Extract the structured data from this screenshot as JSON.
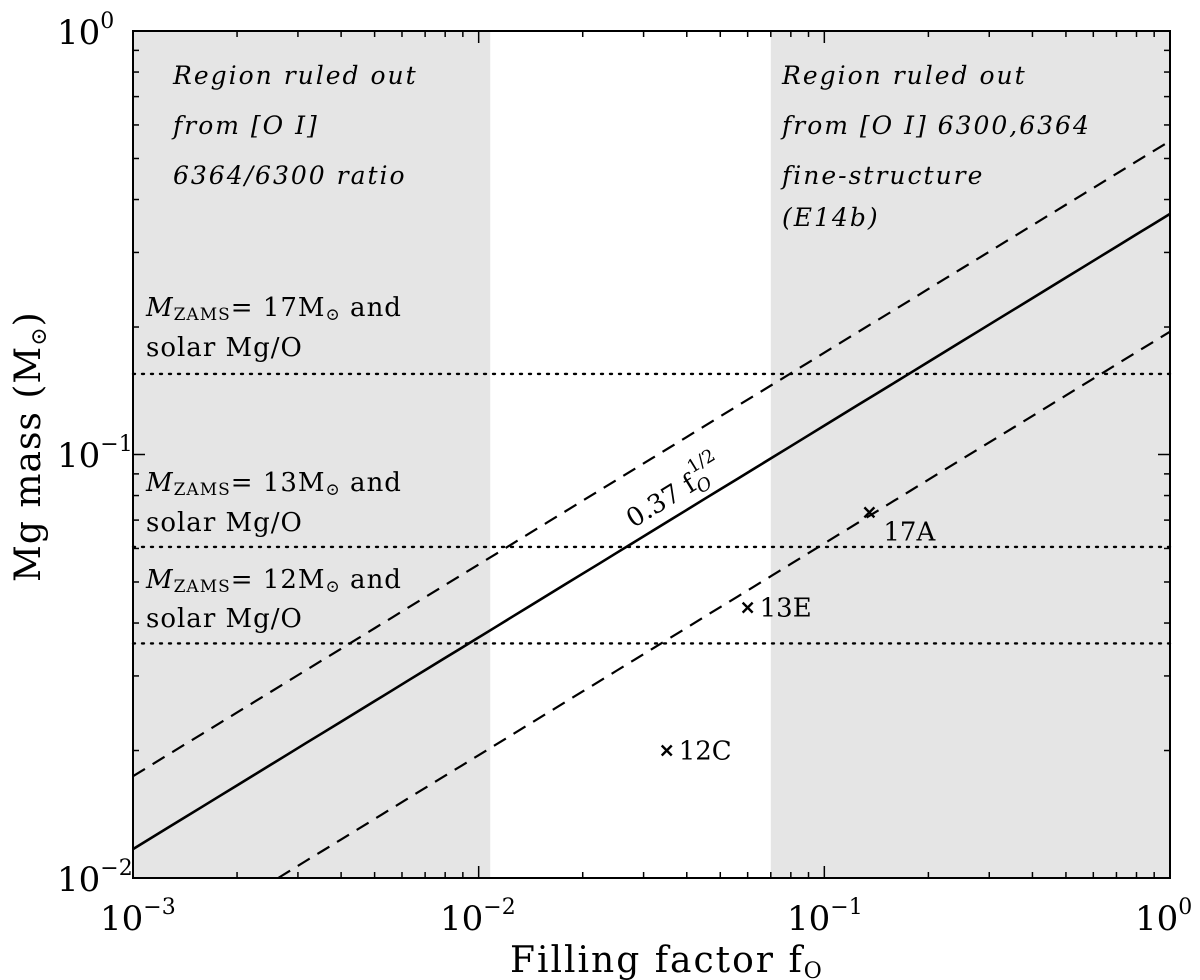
{
  "chart_data": {
    "type": "line",
    "xscale": "log",
    "yscale": "log",
    "xlim": [
      0.001,
      1
    ],
    "ylim": [
      0.01,
      1
    ],
    "grid": false,
    "xlabel": "Filling factor f",
    "xlabel_sub": "O",
    "ylabel": "Mg mass (M",
    "ylabel_sub": "⊙",
    "ylabel_end": ")",
    "x_ticks": [
      {
        "value": 0.001,
        "base": "10",
        "exp": "−3"
      },
      {
        "value": 0.01,
        "base": "10",
        "exp": "−2"
      },
      {
        "value": 0.1,
        "base": "10",
        "exp": "−1"
      },
      {
        "value": 1,
        "base": "10",
        "exp": "0"
      }
    ],
    "y_ticks": [
      {
        "value": 0.01,
        "base": "10",
        "exp": "−2"
      },
      {
        "value": 0.1,
        "base": "10",
        "exp": "−1"
      },
      {
        "value": 1,
        "base": "10",
        "exp": "0"
      }
    ],
    "shaded_regions": [
      {
        "x_range": [
          0.001,
          0.0108
        ],
        "color": "#e5e5e5",
        "lines": [
          "Region ruled out",
          "from [O I]",
          "6364/6300 ratio"
        ]
      },
      {
        "x_range": [
          0.07,
          1
        ],
        "color": "#e5e5e5",
        "lines": [
          "Region ruled out",
          "from [O I] 6300,6364",
          "fine-structure",
          "(E14b)"
        ]
      }
    ],
    "series": [
      {
        "style": "solid",
        "coefficient": 0.37,
        "exponent": 0.5,
        "x_range": [
          0.001,
          1
        ]
      },
      {
        "style": "dashed",
        "coefficient": 0.55,
        "exponent": 0.5,
        "x_range": [
          0.001,
          1
        ]
      },
      {
        "style": "dashed",
        "coefficient": 0.195,
        "exponent": 0.5,
        "x_range": [
          0.001,
          1
        ]
      }
    ],
    "line_label": {
      "text": "0.37 f",
      "sub": "O",
      "sup": "1/2",
      "x": 0.028,
      "y": 0.0655
    },
    "horizontal_lines": [
      {
        "y": 0.155,
        "style": "dotted",
        "label_parts": [
          "M",
          "ZAMS",
          "= 17M",
          "⊙",
          " and"
        ],
        "label_line2": "solar Mg/O"
      },
      {
        "y": 0.0605,
        "style": "dotted",
        "label_parts": [
          "M",
          "ZAMS",
          "= 13M",
          "⊙",
          " and"
        ],
        "label_line2": "solar Mg/O"
      },
      {
        "y": 0.0358,
        "style": "dotted",
        "label_parts": [
          "M",
          "ZAMS",
          "= 12M",
          "⊙",
          " and"
        ],
        "label_line2": "solar Mg/O"
      }
    ],
    "points": [
      {
        "label": "17A",
        "x": 0.135,
        "y": 0.073
      },
      {
        "label": "13E",
        "x": 0.06,
        "y": 0.0435
      },
      {
        "label": "12C",
        "x": 0.035,
        "y": 0.02
      }
    ]
  }
}
